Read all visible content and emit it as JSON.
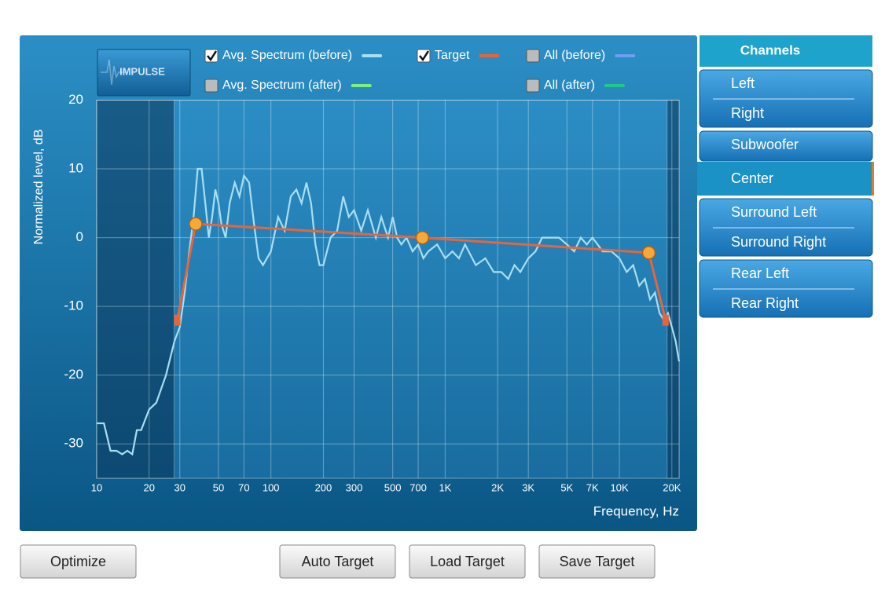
{
  "chart_data": {
    "type": "line",
    "x_log": true,
    "grid": true,
    "button": "IMPULSE",
    "ylabel": "Normalized level, dB",
    "xlabel": "Frequency, Hz",
    "xlim": [
      10,
      22000
    ],
    "ylim": [
      -35,
      20
    ],
    "xticks": [
      10,
      20,
      30,
      50,
      70,
      100,
      200,
      300,
      500,
      700,
      {
        "value": 1000,
        "label": "1K"
      },
      {
        "value": 2000,
        "label": "2K"
      },
      {
        "value": 3000,
        "label": "3K"
      },
      {
        "value": 5000,
        "label": "5K"
      },
      {
        "value": 7000,
        "label": "7K"
      },
      {
        "value": 10000,
        "label": "10K"
      },
      {
        "value": 20000,
        "label": "20K"
      }
    ],
    "yticks": [
      20,
      10,
      0,
      -10,
      -20,
      -30
    ],
    "series": [
      {
        "name": "Avg. Spectrum (before)",
        "color": "#a8def2",
        "checked": true,
        "x": [
          10,
          11,
          12,
          13,
          14,
          15,
          16,
          17,
          18,
          20,
          22,
          25,
          28,
          30,
          32,
          34,
          36,
          38,
          40,
          42,
          44,
          46,
          48,
          50,
          52,
          55,
          58,
          62,
          66,
          70,
          75,
          80,
          85,
          90,
          100,
          110,
          120,
          130,
          140,
          150,
          160,
          170,
          180,
          190,
          200,
          220,
          240,
          260,
          280,
          300,
          330,
          360,
          400,
          430,
          470,
          500,
          530,
          560,
          600,
          650,
          700,
          750,
          800,
          900,
          1000,
          1100,
          1200,
          1300,
          1500,
          1700,
          1900,
          2100,
          2300,
          2500,
          2700,
          3000,
          3300,
          3600,
          4000,
          4500,
          5000,
          5500,
          6000,
          6500,
          7000,
          7500,
          8000,
          9000,
          10000,
          11000,
          12000,
          13000,
          14000,
          15000,
          16000,
          17000,
          18000,
          19000,
          20000,
          21000,
          22000
        ],
        "values": [
          -27,
          -27,
          -31,
          -31,
          -31.5,
          -31,
          -31.5,
          -28,
          -28,
          -25,
          -24,
          -20,
          -15,
          -13,
          -8,
          -2,
          3,
          10,
          10,
          5,
          0,
          3,
          7,
          5,
          2,
          0,
          5,
          8,
          6,
          9,
          8,
          2,
          -3,
          -4,
          -2,
          3,
          1,
          6,
          7,
          5,
          8,
          5,
          -1,
          -4,
          -4,
          0,
          1,
          6,
          3,
          4,
          1,
          4,
          0,
          3,
          0,
          3,
          0,
          -1,
          0,
          -2,
          -1,
          -3,
          -2,
          -1,
          -3,
          -2,
          -3,
          -1,
          -4,
          -3,
          -5,
          -5,
          -6,
          -4,
          -5,
          -3,
          -2,
          0,
          0,
          0,
          -1,
          -2,
          0,
          -1,
          0,
          -1,
          -2,
          -2,
          -3,
          -5,
          -4,
          -7,
          -6,
          -9,
          -8,
          -11,
          -12,
          -11,
          -13,
          -15,
          -18
        ]
      },
      {
        "name": "Target",
        "color": "#e8643a",
        "checked": true,
        "x": [
          29,
          37,
          740,
          14750,
          18400
        ],
        "values": [
          -12,
          2,
          0,
          -2.2,
          -12
        ]
      }
    ],
    "toggles": [
      {
        "name": "All (before)",
        "color": "#6e9ef0",
        "checked": false
      },
      {
        "name": "Avg. Spectrum (after)",
        "color": "#7cf07c",
        "checked": false
      },
      {
        "name": "All (after)",
        "color": "#22c88a",
        "checked": false
      }
    ]
  },
  "channels": {
    "title": "Channels",
    "groups": [
      [
        "Left",
        "Right"
      ],
      [
        "Subwoofer"
      ],
      [
        "Center"
      ],
      [
        "Surround Left",
        "Surround Right"
      ],
      [
        "Rear Left",
        "Rear Right"
      ]
    ],
    "selected": "Center"
  },
  "buttons": [
    "Optimize",
    "Auto Target",
    "Load Target",
    "Save Target"
  ]
}
